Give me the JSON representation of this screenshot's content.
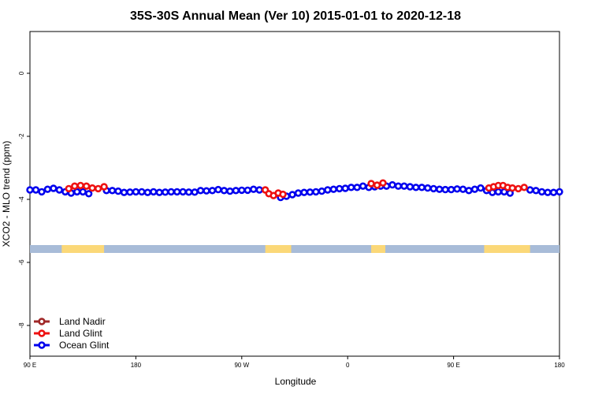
{
  "chart_data": {
    "type": "scatter",
    "title": "35S-30S Annual Mean (Ver 10)   2015-01-01 to 2020-12-18",
    "xlabel": "Longitude",
    "ylabel": "XCO2 - MLO trend (ppm)",
    "xlim": [
      0,
      450
    ],
    "ylim": [
      -9,
      1.3
    ],
    "x_ticks": [
      {
        "v": 0,
        "label": "90 E"
      },
      {
        "v": 90,
        "label": "180"
      },
      {
        "v": 180,
        "label": "90 W"
      },
      {
        "v": 270,
        "label": "0"
      },
      {
        "v": 360,
        "label": "90 E"
      },
      {
        "v": 450,
        "label": "180"
      }
    ],
    "y_ticks": [
      0,
      -2,
      -4,
      -6,
      -8
    ],
    "grid": false,
    "legend_position": "bottom-left",
    "land_strip": {
      "y_range": [
        -5.7,
        -5.45
      ],
      "ocean_color": "#a8bcd8",
      "land_color": "#fbd878",
      "land_spans": [
        [
          27,
          63
        ],
        [
          200,
          222
        ],
        [
          290,
          302
        ],
        [
          386,
          425
        ]
      ]
    },
    "series": [
      {
        "name": "Land Nadir",
        "color": "#a02828",
        "points": []
      },
      {
        "name": "Land Glint",
        "color": "#ee1111",
        "points": [
          [
            33,
            -3.66
          ],
          [
            38,
            -3.58
          ],
          [
            43,
            -3.56
          ],
          [
            48,
            -3.58
          ],
          [
            53,
            -3.64
          ],
          [
            58,
            -3.66
          ],
          [
            63,
            -3.6
          ],
          [
            200,
            -3.7
          ],
          [
            203,
            -3.82
          ],
          [
            207,
            -3.88
          ],
          [
            211,
            -3.8
          ],
          [
            215,
            -3.84
          ],
          [
            290,
            -3.5
          ],
          [
            295,
            -3.55
          ],
          [
            300,
            -3.48
          ],
          [
            390,
            -3.64
          ],
          [
            394,
            -3.6
          ],
          [
            398,
            -3.56
          ],
          [
            402,
            -3.56
          ],
          [
            406,
            -3.62
          ],
          [
            410,
            -3.64
          ],
          [
            415,
            -3.66
          ],
          [
            420,
            -3.62
          ]
        ]
      },
      {
        "name": "Ocean Glint",
        "color": "#0000ee",
        "points": [
          [
            0,
            -3.7
          ],
          [
            5,
            -3.7
          ],
          [
            10,
            -3.76
          ],
          [
            15,
            -3.68
          ],
          [
            20,
            -3.65
          ],
          [
            25,
            -3.7
          ],
          [
            30,
            -3.76
          ],
          [
            35,
            -3.8
          ],
          [
            40,
            -3.76
          ],
          [
            45,
            -3.76
          ],
          [
            50,
            -3.82
          ],
          [
            65,
            -3.72
          ],
          [
            70,
            -3.72
          ],
          [
            75,
            -3.74
          ],
          [
            80,
            -3.78
          ],
          [
            85,
            -3.77
          ],
          [
            90,
            -3.76
          ],
          [
            95,
            -3.76
          ],
          [
            100,
            -3.78
          ],
          [
            105,
            -3.76
          ],
          [
            110,
            -3.78
          ],
          [
            115,
            -3.77
          ],
          [
            120,
            -3.76
          ],
          [
            125,
            -3.76
          ],
          [
            130,
            -3.76
          ],
          [
            135,
            -3.77
          ],
          [
            140,
            -3.77
          ],
          [
            145,
            -3.72
          ],
          [
            150,
            -3.73
          ],
          [
            155,
            -3.72
          ],
          [
            160,
            -3.69
          ],
          [
            165,
            -3.72
          ],
          [
            170,
            -3.74
          ],
          [
            175,
            -3.72
          ],
          [
            180,
            -3.71
          ],
          [
            185,
            -3.71
          ],
          [
            190,
            -3.68
          ],
          [
            195,
            -3.7
          ],
          [
            213,
            -3.94
          ],
          [
            218,
            -3.9
          ],
          [
            223,
            -3.85
          ],
          [
            228,
            -3.8
          ],
          [
            233,
            -3.78
          ],
          [
            238,
            -3.77
          ],
          [
            243,
            -3.76
          ],
          [
            248,
            -3.74
          ],
          [
            253,
            -3.7
          ],
          [
            258,
            -3.68
          ],
          [
            263,
            -3.66
          ],
          [
            268,
            -3.65
          ],
          [
            273,
            -3.62
          ],
          [
            278,
            -3.62
          ],
          [
            283,
            -3.58
          ],
          [
            288,
            -3.62
          ],
          [
            293,
            -3.6
          ],
          [
            298,
            -3.58
          ],
          [
            303,
            -3.58
          ],
          [
            308,
            -3.54
          ],
          [
            313,
            -3.58
          ],
          [
            318,
            -3.58
          ],
          [
            323,
            -3.6
          ],
          [
            328,
            -3.62
          ],
          [
            333,
            -3.62
          ],
          [
            338,
            -3.64
          ],
          [
            343,
            -3.66
          ],
          [
            348,
            -3.68
          ],
          [
            353,
            -3.69
          ],
          [
            358,
            -3.69
          ],
          [
            363,
            -3.67
          ],
          [
            368,
            -3.68
          ],
          [
            373,
            -3.72
          ],
          [
            378,
            -3.68
          ],
          [
            383,
            -3.64
          ],
          [
            388,
            -3.72
          ],
          [
            393,
            -3.78
          ],
          [
            398,
            -3.76
          ],
          [
            403,
            -3.76
          ],
          [
            408,
            -3.8
          ],
          [
            425,
            -3.7
          ],
          [
            430,
            -3.72
          ],
          [
            435,
            -3.76
          ],
          [
            440,
            -3.78
          ],
          [
            445,
            -3.78
          ],
          [
            450,
            -3.76
          ]
        ]
      }
    ]
  }
}
